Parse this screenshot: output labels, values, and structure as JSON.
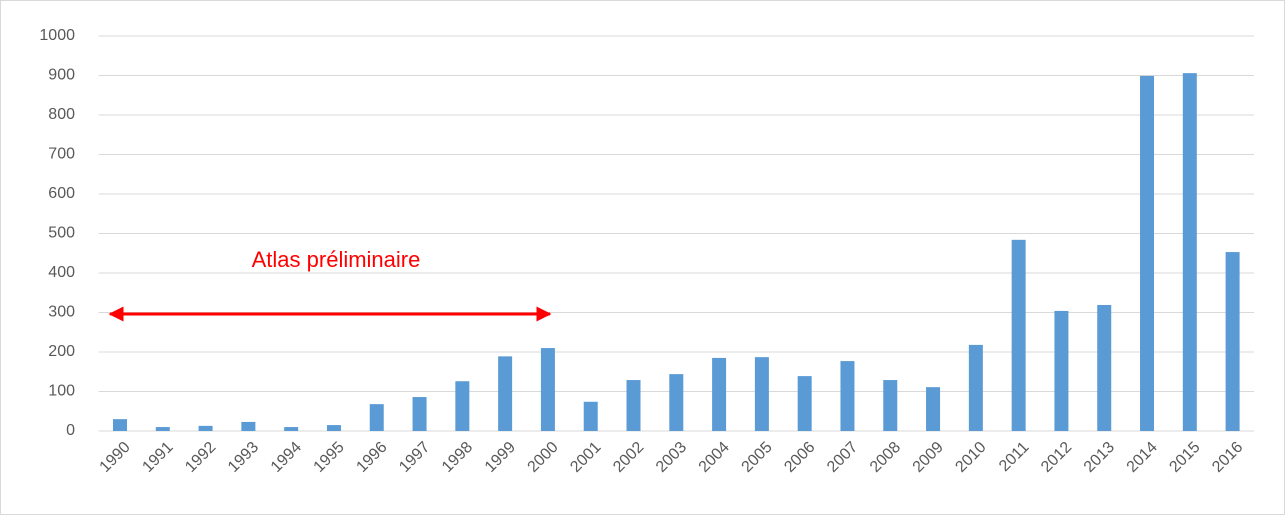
{
  "chart_data": {
    "type": "bar",
    "categories": [
      "1990",
      "1991",
      "1992",
      "1993",
      "1994",
      "1995",
      "1996",
      "1997",
      "1998",
      "1999",
      "2000",
      "2001",
      "2002",
      "2003",
      "2004",
      "2005",
      "2006",
      "2007",
      "2008",
      "2009",
      "2010",
      "2011",
      "2012",
      "2013",
      "2014",
      "2015",
      "2016"
    ],
    "values": [
      30,
      10,
      13,
      23,
      10,
      15,
      68,
      86,
      126,
      189,
      210,
      74,
      129,
      144,
      185,
      187,
      139,
      177,
      129,
      111,
      218,
      484,
      304,
      319,
      899,
      906,
      453
    ],
    "color": "#5b9bd5",
    "ylim": [
      0,
      1000
    ],
    "yticks": [
      0,
      100,
      200,
      300,
      400,
      500,
      600,
      700,
      800,
      900,
      1000
    ],
    "grid": true,
    "annotations": [
      {
        "text": "Atlas préliminaire",
        "color": "#ff0000"
      }
    ]
  }
}
